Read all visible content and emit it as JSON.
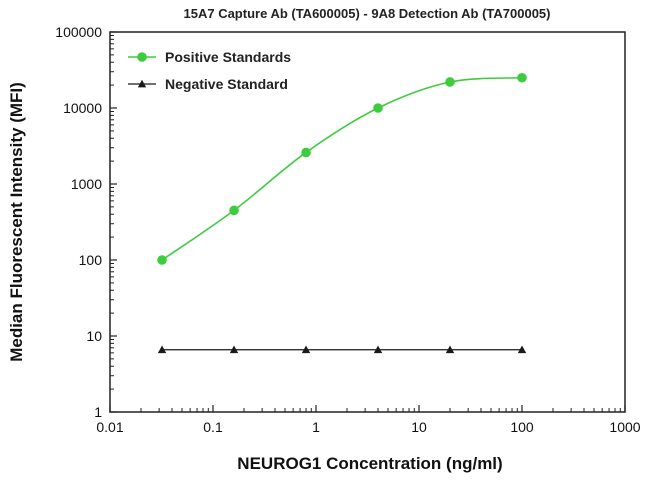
{
  "chart_data": {
    "type": "line",
    "title": "15A7 Capture Ab (TA600005) - 9A8 Detection Ab (TA700005)",
    "xlabel": "NEUROG1 Concentration (ng/ml)",
    "ylabel": "Median  Fluorescent Intensity  (MFI)",
    "xscale": "log",
    "yscale": "log",
    "xlim": [
      0.01,
      1000
    ],
    "ylim": [
      1,
      100000
    ],
    "xticks": [
      "0.01",
      "0.1",
      "1",
      "10",
      "100",
      "1000"
    ],
    "yticks": [
      "1",
      "10",
      "100",
      "1000",
      "10000",
      "100000"
    ],
    "grid": false,
    "legend_position": "top-left",
    "series": [
      {
        "name": "Positive Standards",
        "marker": "circle",
        "color": "#3dcc3d",
        "smooth": true,
        "x": [
          0.032,
          0.16,
          0.8,
          4,
          20,
          100
        ],
        "y": [
          100,
          450,
          2600,
          10000,
          22000,
          25000
        ]
      },
      {
        "name": "Negative Standard",
        "marker": "triangle",
        "color": "#1a1a1a",
        "smooth": false,
        "x": [
          0.032,
          0.16,
          0.8,
          4,
          20,
          100
        ],
        "y": [
          6.6,
          6.6,
          6.6,
          6.6,
          6.6,
          6.6
        ]
      }
    ]
  }
}
